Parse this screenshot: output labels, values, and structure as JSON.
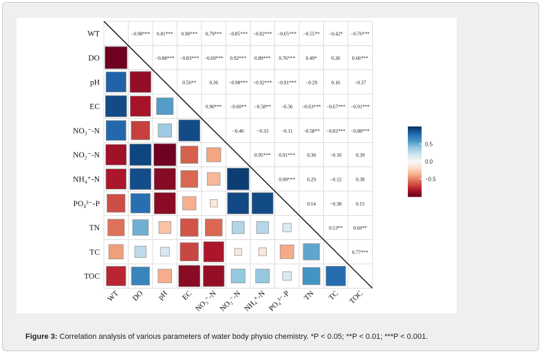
{
  "caption": {
    "label": "Figure 3:",
    "text": " Correlation analysis of various parameters of water body physio chemistry. *P < 0.05; **P < 0.01; ***P < 0.001."
  },
  "chart_data": {
    "type": "heatmap",
    "variables": [
      "WT",
      "DO",
      "pH",
      "EC",
      "NO3−-N",
      "NO2−-N",
      "NH4+-N",
      "PO43−-P",
      "TN",
      "TC",
      "TOC"
    ],
    "row_labels": [
      "WT",
      "DO",
      "pH",
      "EC",
      "NO₃⁻-N",
      "NO₂⁻-N",
      "NH₄⁺-N",
      "PO₄³⁻-P",
      "TN",
      "TC",
      "TOC"
    ],
    "col_labels": [
      "WT",
      "DO",
      "pH",
      "EC",
      "NO₃⁻-N",
      "NO₂⁻-N",
      "NH₄⁺-N",
      "PO₄³⁻-P",
      "TN",
      "TC",
      "TOC"
    ],
    "matrix": [
      [
        1,
        -0.98,
        0.81,
        0.9,
        0.79,
        -0.85,
        -0.82,
        -0.65,
        -0.55,
        -0.42,
        -0.76
      ],
      [
        -0.98,
        1,
        -0.88,
        -0.83,
        -0.69,
        0.92,
        0.89,
        0.76,
        0.49,
        0.26,
        0.66
      ],
      [
        0.81,
        -0.88,
        1,
        0.56,
        0.36,
        -0.98,
        -0.92,
        -0.91,
        -0.29,
        0.16,
        -0.37
      ],
      [
        0.9,
        -0.83,
        0.56,
        1,
        0.9,
        -0.6,
        -0.58,
        -0.36,
        -0.63,
        -0.67,
        -0.91
      ],
      [
        0.79,
        -0.69,
        0.36,
        0.9,
        1,
        -0.4,
        -0.33,
        -0.11,
        -0.58,
        -0.82,
        -0.88
      ],
      [
        -0.85,
        0.92,
        -0.98,
        -0.6,
        -0.4,
        1,
        0.95,
        0.91,
        0.3,
        -0.1,
        0.39
      ],
      [
        -0.82,
        0.89,
        -0.92,
        -0.58,
        -0.33,
        0.95,
        1,
        0.9,
        0.29,
        -0.12,
        0.38
      ],
      [
        -0.65,
        0.76,
        -0.91,
        -0.36,
        -0.11,
        0.91,
        0.9,
        1,
        0.14,
        -0.38,
        0.15
      ],
      [
        -0.55,
        0.49,
        -0.29,
        -0.63,
        -0.58,
        0.3,
        0.29,
        0.14,
        1,
        0.53,
        0.6
      ],
      [
        -0.42,
        0.26,
        0.16,
        -0.67,
        -0.82,
        -0.1,
        -0.12,
        -0.38,
        0.53,
        1,
        0.77
      ],
      [
        -0.76,
        0.66,
        -0.37,
        -0.91,
        -0.88,
        0.39,
        0.38,
        0.15,
        0.6,
        0.77,
        1
      ]
    ],
    "upper_labels": [
      [
        "",
        "−0.98***",
        "0.81***",
        "0.90***",
        "0.79***",
        "−0.85***",
        "−0.82***",
        "−0.65***",
        "−0.55**",
        "−0.42*",
        "−0.76***"
      ],
      [
        "",
        "",
        "−0.88***",
        "−0.83***",
        "−0.69***",
        "0.92***",
        "0.89***",
        "0.76***",
        "0.49*",
        "0.26",
        "0.66***"
      ],
      [
        "",
        "",
        "",
        "0.56**",
        "0.36",
        "−0.98***",
        "−0.92***",
        "−0.91***",
        "−0.29",
        "0.16",
        "−0.37"
      ],
      [
        "",
        "",
        "",
        "",
        "0.90***",
        "−0.60**",
        "−0.58**",
        "−0.36",
        "−0.63***",
        "−0.67***",
        "−0.91***"
      ],
      [
        "",
        "",
        "",
        "",
        "",
        "−0.40",
        "−0.33",
        "−0.11",
        "−0.58**",
        "−0.82***",
        "−0.88***"
      ],
      [
        "",
        "",
        "",
        "",
        "",
        "",
        "0.95***",
        "0.91***",
        "0.30",
        "−0.10",
        "0.39"
      ],
      [
        "",
        "",
        "",
        "",
        "",
        "",
        "",
        "0.90***",
        "0.29",
        "−0.12",
        "0.38"
      ],
      [
        "",
        "",
        "",
        "",
        "",
        "",
        "",
        "",
        "0.14",
        "−0.38",
        "0.15"
      ],
      [
        "",
        "",
        "",
        "",
        "",
        "",
        "",
        "",
        "",
        "0.53**",
        "0.60**"
      ],
      [
        "",
        "",
        "",
        "",
        "",
        "",
        "",
        "",
        "",
        "",
        "0.77***"
      ],
      [
        "",
        "",
        "",
        "",
        "",
        "",
        "",
        "",
        "",
        "",
        ""
      ]
    ],
    "colorbar": {
      "ticks": [
        "0.5",
        "0.0",
        "−0.5"
      ],
      "tick_values": [
        0.5,
        0.0,
        -0.5
      ],
      "range": [
        -1,
        1
      ]
    },
    "colors": {
      "positive": "#053061",
      "mid": "#f7f7f7",
      "negative": "#67001f"
    }
  }
}
